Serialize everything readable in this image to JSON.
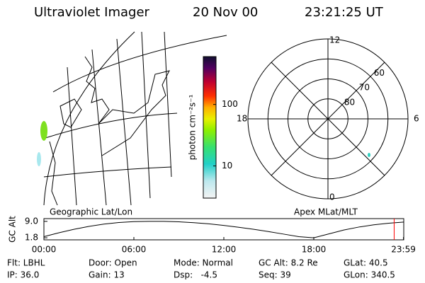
{
  "header": {
    "title": "Ultraviolet Imager",
    "date": "20 Nov 00",
    "time": "23:21:25 UT"
  },
  "map": {
    "label": "Geographic Lat/Lon"
  },
  "colorbar": {
    "label": "photon cm⁻²s⁻¹",
    "lim": [
      3,
      600
    ],
    "ticks": [
      10,
      100
    ],
    "log": true
  },
  "polar": {
    "label": "Apex MLat/MLT",
    "rlim": [
      90,
      50
    ],
    "lat_ticks": [
      80,
      70,
      60
    ],
    "hour_ticks": [
      12,
      18,
      6,
      0
    ]
  },
  "chart_data": {
    "type": "line",
    "ylabel": "GC Alt",
    "x": [
      0,
      1,
      2,
      3,
      4,
      5,
      6,
      7,
      8,
      9,
      10,
      11,
      12,
      13,
      14,
      15,
      16,
      17,
      18,
      19,
      20,
      21,
      22,
      23,
      24
    ],
    "series": [
      {
        "name": "GC Alt",
        "color": "#000000",
        "values": [
          2.3,
          4.0,
          5.5,
          6.8,
          7.8,
          8.5,
          8.9,
          9.0,
          9.0,
          8.8,
          8.4,
          7.9,
          7.2,
          6.4,
          5.5,
          4.5,
          3.4,
          2.3,
          1.8,
          3.5,
          5.2,
          6.5,
          7.5,
          8.2,
          8.7
        ]
      }
    ],
    "xlim": [
      0,
      24
    ],
    "ylim": [
      0.9,
      10.2
    ],
    "xticks": [
      {
        "value": 0,
        "label": "00:00"
      },
      {
        "value": 6,
        "label": "06:00"
      },
      {
        "value": 12,
        "label": "12:00"
      },
      {
        "value": 18,
        "label": "18:00"
      },
      {
        "value": 23.98,
        "label": "23:59"
      }
    ],
    "yticks": [
      {
        "value": 9,
        "label": "9.0"
      },
      {
        "value": 1.8,
        "label": "1.8"
      }
    ],
    "marker_x": 23.36,
    "marker_color": "#ff0000"
  },
  "footer": {
    "rows": [
      [
        "Flt: LBHL",
        "Door: Open",
        "Mode: Normal",
        "GC Alt: 8.2 Re",
        "GLat: 40.5"
      ],
      [
        "IP: 36.0",
        "Gain: 13",
        "Dsp:   -4.5",
        "Seq: 39",
        "GLon: 340.5"
      ]
    ]
  }
}
